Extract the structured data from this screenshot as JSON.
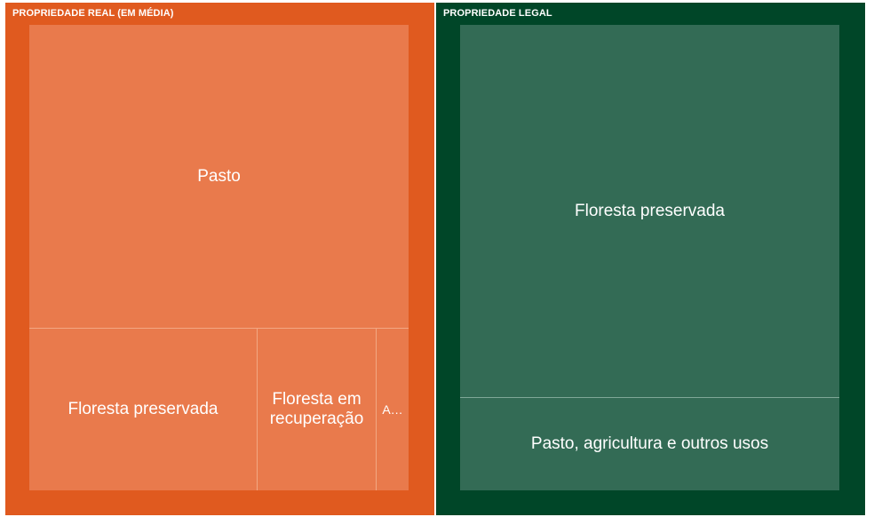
{
  "colors": {
    "real_bg": "#e05a1f",
    "real_tile": "#e97a4c",
    "legal_bg": "#004628",
    "legal_tile": "#336b55",
    "divider_real": "#f2a783",
    "divider_legal": "#7fa897"
  },
  "chart_data": {
    "type": "treemap",
    "groups": [
      {
        "name": "PROPRIEDADE REAL (EM MÉDIA)",
        "items": [
          {
            "label": "Pasto",
            "value": 65
          },
          {
            "label": "Floresta preservada",
            "value": 21
          },
          {
            "label": "Floresta em recuperação",
            "value": 11
          },
          {
            "label": "A…",
            "value": 3
          }
        ]
      },
      {
        "name": "PROPRIEDADE LEGAL",
        "items": [
          {
            "label": "Floresta preservada",
            "value": 80
          },
          {
            "label": "Pasto, agricultura e outros usos",
            "value": 20
          }
        ]
      }
    ]
  }
}
